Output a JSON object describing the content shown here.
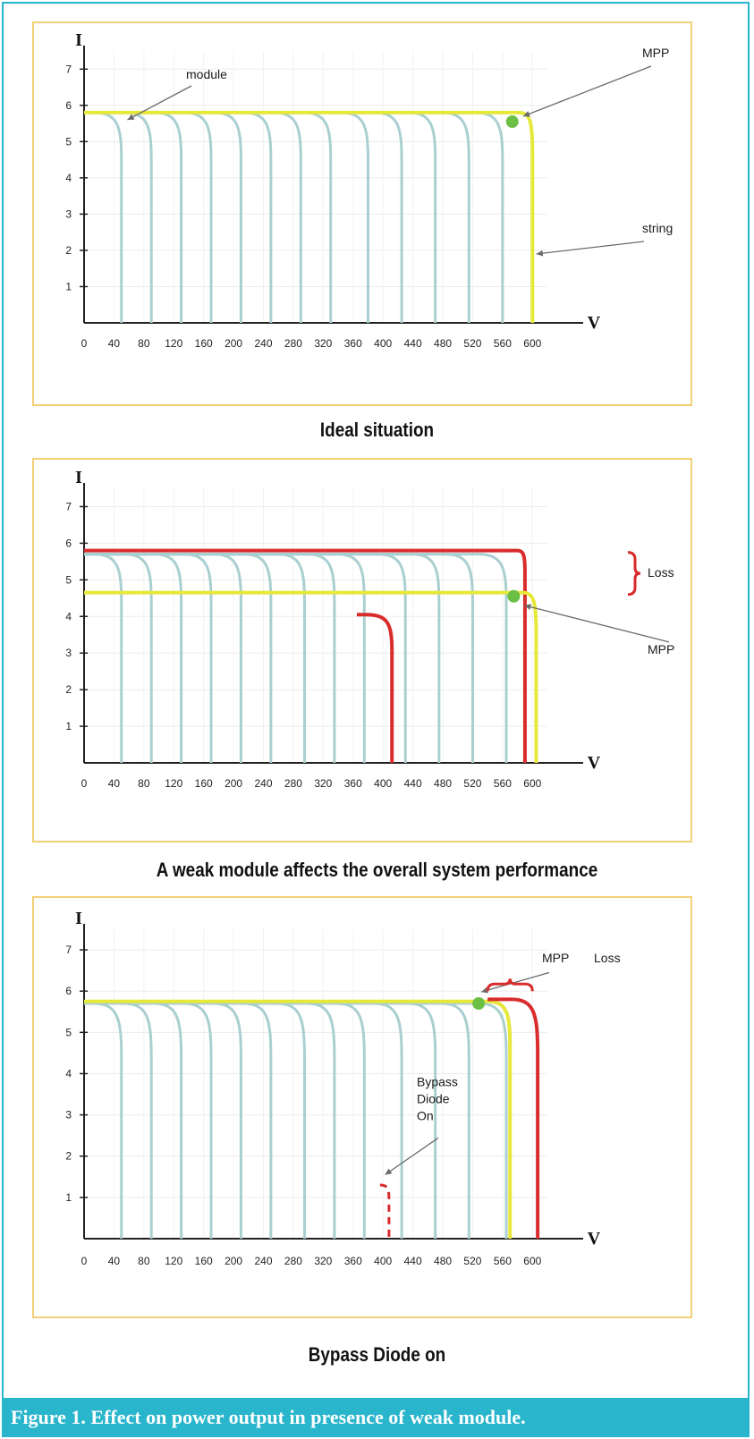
{
  "colors": {
    "frame": "#27b6cc",
    "panel_border": "#f3cf77",
    "module_curve": "#a9cfd0",
    "string_curve": "#e6e83a",
    "loss_curve": "#d92c2c",
    "mpp_dot": "#6cbf45",
    "caption_bar": "#29b5cb"
  },
  "figure_caption": "Figure 1. Effect on power output in presence of weak module.",
  "chart_data": [
    {
      "type": "line",
      "caption": "Ideal situation",
      "ylabel": "I",
      "xlabel": "V",
      "xlim": [
        0,
        620
      ],
      "ylim": [
        0,
        7.5
      ],
      "x_ticks": [
        0,
        40,
        80,
        120,
        160,
        200,
        240,
        280,
        320,
        360,
        400,
        440,
        480,
        520,
        560,
        600
      ],
      "y_ticks": [
        1,
        2,
        3,
        4,
        5,
        6,
        7
      ],
      "grid": true,
      "module_isc": 5.8,
      "module_voc": [
        50,
        90,
        130,
        170,
        210,
        250,
        290,
        330,
        380,
        425,
        470,
        515,
        560
      ],
      "string_curve": {
        "isc": 5.8,
        "voc": 600
      },
      "mpp": {
        "v": 573,
        "i": 5.55
      },
      "annotations": [
        {
          "text": "module",
          "target": {
            "v": 58,
            "i": 5.6
          }
        },
        {
          "text": "MPP",
          "target": {
            "v": 578,
            "i": 5.65
          }
        },
        {
          "text": "string",
          "target": {
            "v": 598,
            "i": 1.9
          }
        }
      ]
    },
    {
      "type": "line",
      "caption": "A weak module affects the overall system performance",
      "ylabel": "I",
      "xlabel": "V",
      "xlim": [
        0,
        620
      ],
      "ylim": [
        0,
        7.5
      ],
      "x_ticks": [
        0,
        40,
        80,
        120,
        160,
        200,
        240,
        280,
        320,
        360,
        400,
        440,
        480,
        520,
        560,
        600
      ],
      "y_ticks": [
        1,
        2,
        3,
        4,
        5,
        6,
        7
      ],
      "grid": true,
      "module_isc": 5.7,
      "module_voc": [
        50,
        90,
        130,
        170,
        210,
        250,
        295,
        335,
        375,
        430,
        475,
        520,
        565
      ],
      "string_curve": {
        "isc": 4.65,
        "voc": 605
      },
      "full_string_curve": {
        "isc": 5.8,
        "voc": 590
      },
      "weak_module": {
        "isc": 4.05,
        "v_start": 365,
        "voc": 412
      },
      "mpp": {
        "v": 575,
        "i": 4.55
      },
      "annotations": [
        {
          "text": "Loss",
          "target": {
            "v": 598,
            "i": 5.2
          }
        },
        {
          "text": "MPP",
          "target": {
            "v": 582,
            "i": 4.45
          }
        }
      ]
    },
    {
      "type": "line",
      "caption": "Bypass Diode on",
      "ylabel": "I",
      "xlabel": "V",
      "xlim": [
        0,
        620
      ],
      "ylim": [
        0,
        7.5
      ],
      "x_ticks": [
        0,
        40,
        80,
        120,
        160,
        200,
        240,
        280,
        320,
        360,
        400,
        440,
        480,
        520,
        560,
        600
      ],
      "y_ticks": [
        1,
        2,
        3,
        4,
        5,
        6,
        7
      ],
      "grid": true,
      "module_isc": 5.7,
      "module_voc": [
        50,
        90,
        130,
        170,
        210,
        250,
        295,
        335,
        375,
        425,
        470,
        515,
        565
      ],
      "string_curve": {
        "isc": 5.75,
        "voc": 570
      },
      "full_string_curve": {
        "isc": 5.8,
        "voc": 607
      },
      "bypassed_module": {
        "isc": 1.3,
        "v_start": 368,
        "voc": 408
      },
      "mpp": {
        "v": 528,
        "i": 5.7
      },
      "annotations": [
        {
          "text": "MPP",
          "target": {
            "v": 522,
            "i": 5.85
          }
        },
        {
          "text": "Loss",
          "target": {
            "v": 565,
            "i": 6.3
          }
        },
        {
          "text": "Bypass\nDiode\nOn",
          "target": {
            "v": 398,
            "i": 1.55
          }
        }
      ]
    }
  ]
}
